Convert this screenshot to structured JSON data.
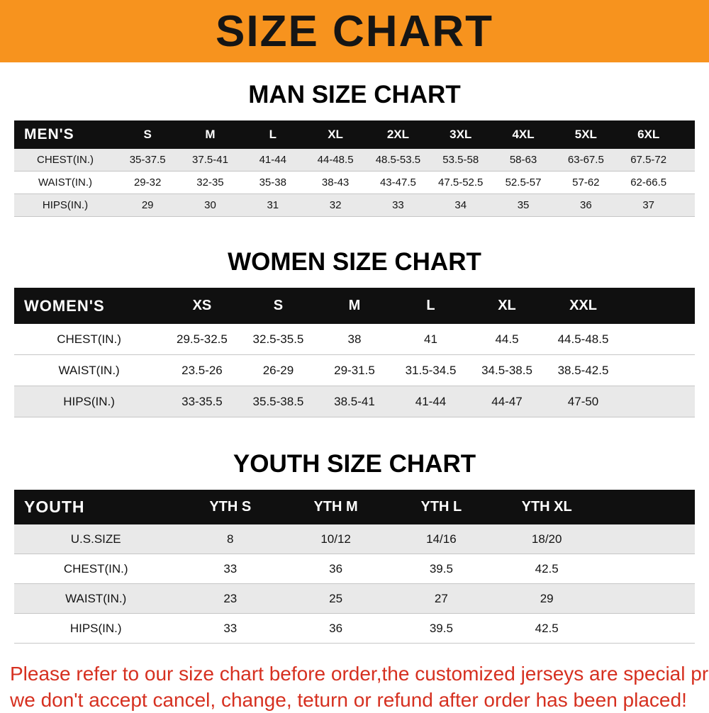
{
  "banner": {
    "title": "SIZE CHART"
  },
  "colors": {
    "banner_bg": "#f7931e",
    "header_bg": "#101010",
    "row_alt": "#e9e9e9",
    "footer_text": "#d63020"
  },
  "sections": [
    {
      "heading": "MAN SIZE CHART",
      "table": {
        "header": [
          "MEN'S",
          "S",
          "M",
          "L",
          "XL",
          "2XL",
          "3XL",
          "4XL",
          "5XL",
          "6XL"
        ],
        "rows": [
          [
            "CHEST(IN.)",
            "35-37.5",
            "37.5-41",
            "41-44",
            "44-48.5",
            "48.5-53.5",
            "53.5-58",
            "58-63",
            "63-67.5",
            "67.5-72"
          ],
          [
            "WAIST(IN.)",
            "29-32",
            "32-35",
            "35-38",
            "38-43",
            "43-47.5",
            "47.5-52.5",
            "52.5-57",
            "57-62",
            "62-66.5"
          ],
          [
            "HIPS(IN.)",
            "29",
            "30",
            "31",
            "32",
            "33",
            "34",
            "35",
            "36",
            "37"
          ]
        ]
      }
    },
    {
      "heading": "WOMEN SIZE CHART",
      "table": {
        "header": [
          "WOMEN'S",
          "XS",
          "S",
          "M",
          "L",
          "XL",
          "XXL"
        ],
        "rows": [
          [
            "CHEST(IN.)",
            "29.5-32.5",
            "32.5-35.5",
            "38",
            "41",
            "44.5",
            "44.5-48.5"
          ],
          [
            "WAIST(IN.)",
            "23.5-26",
            "26-29",
            "29-31.5",
            "31.5-34.5",
            "34.5-38.5",
            "38.5-42.5"
          ],
          [
            "HIPS(IN.)",
            "33-35.5",
            "35.5-38.5",
            "38.5-41",
            "41-44",
            "44-47",
            "47-50"
          ]
        ]
      }
    },
    {
      "heading": "YOUTH SIZE CHART",
      "table": {
        "header": [
          "YOUTH",
          "YTH S",
          "YTH M",
          "YTH L",
          "YTH XL"
        ],
        "rows": [
          [
            "U.S.SIZE",
            "8",
            "10/12",
            "14/16",
            "18/20"
          ],
          [
            "CHEST(IN.)",
            "33",
            "36",
            "39.5",
            "42.5"
          ],
          [
            "WAIST(IN.)",
            "23",
            "25",
            "27",
            "29"
          ],
          [
            "HIPS(IN.)",
            "33",
            "36",
            "39.5",
            "42.5"
          ]
        ]
      }
    }
  ],
  "footer": {
    "lines": [
      "Please refer to our size chart before order,the customized jerseys are special products,",
      "we don't accept cancel, change, teturn or refund after order has been placed!"
    ]
  }
}
